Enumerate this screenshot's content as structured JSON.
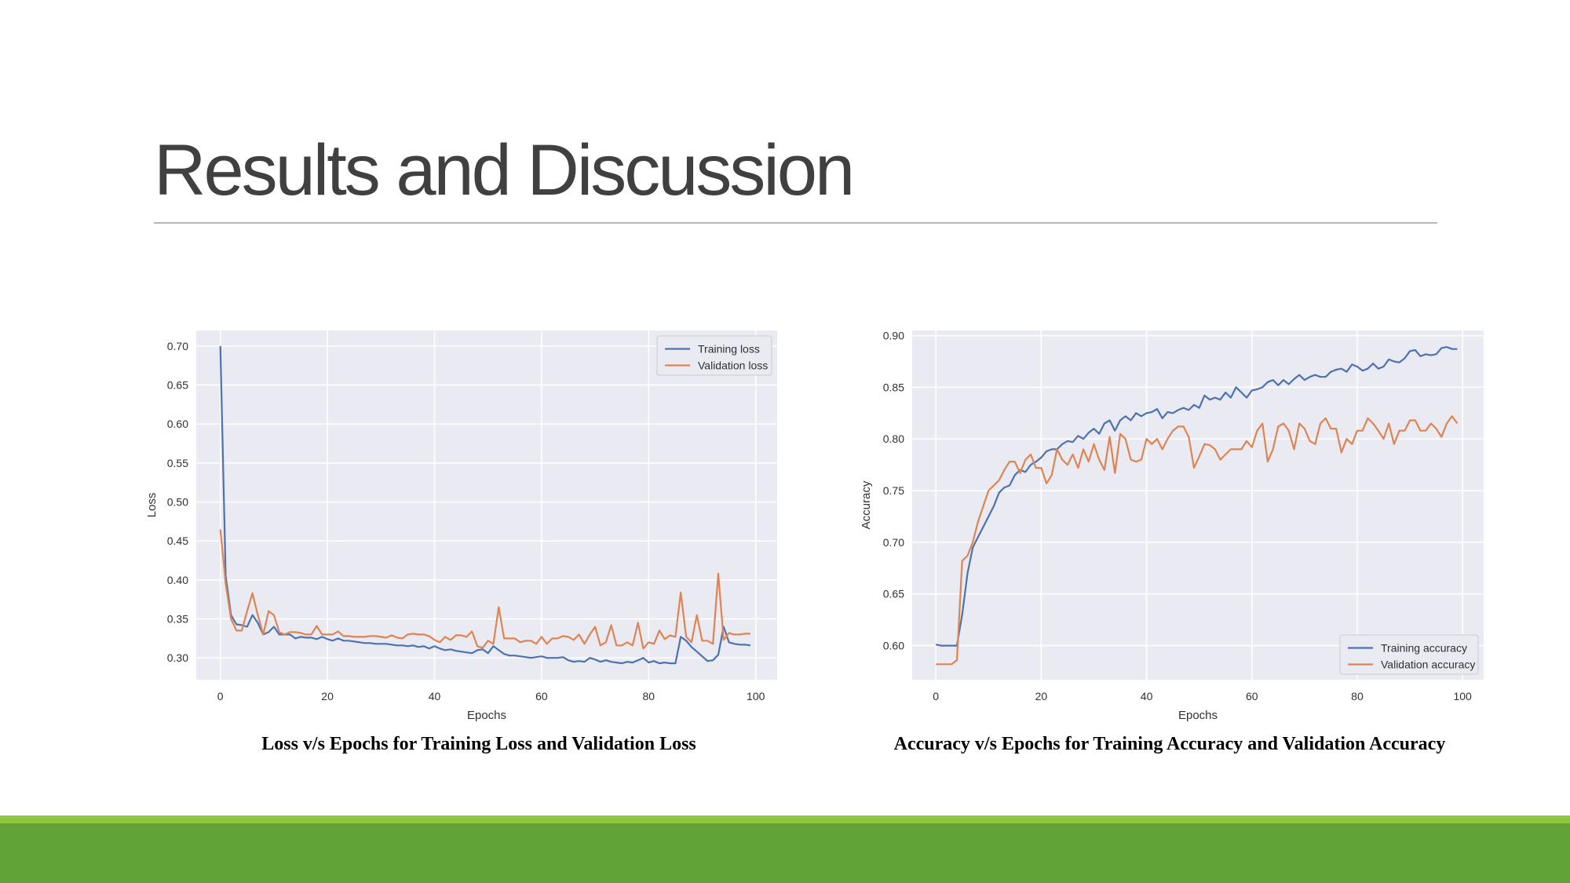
{
  "slide": {
    "title": "Results and Discussion",
    "accent_light": "#8dc63f",
    "accent_dark": "#62a337"
  },
  "charts": {
    "loss": {
      "caption": "Loss v/s Epochs for Training Loss and Validation Loss"
    },
    "accuracy": {
      "caption": "Accuracy v/s Epochs for Training Accuracy and Validation Accuracy"
    }
  },
  "chart_data": [
    {
      "type": "line",
      "xlabel": "Epochs",
      "ylabel": "Loss",
      "xlim": [
        -4.5,
        104
      ],
      "ylim": [
        0.272,
        0.72
      ],
      "xticks": [
        0,
        20,
        40,
        60,
        80,
        100
      ],
      "yticks": [
        0.3,
        0.35,
        0.4,
        0.45,
        0.5,
        0.55,
        0.6,
        0.65,
        0.7
      ],
      "grid": true,
      "legend": "top-right",
      "x": [
        0,
        1,
        2,
        3,
        4,
        5,
        6,
        7,
        8,
        9,
        10,
        11,
        12,
        13,
        14,
        15,
        16,
        17,
        18,
        19,
        20,
        21,
        22,
        23,
        24,
        25,
        26,
        27,
        28,
        29,
        30,
        31,
        32,
        33,
        34,
        35,
        36,
        37,
        38,
        39,
        40,
        41,
        42,
        43,
        44,
        45,
        46,
        47,
        48,
        49,
        50,
        51,
        52,
        53,
        54,
        55,
        56,
        57,
        58,
        59,
        60,
        61,
        62,
        63,
        64,
        65,
        66,
        67,
        68,
        69,
        70,
        71,
        72,
        73,
        74,
        75,
        76,
        77,
        78,
        79,
        80,
        81,
        82,
        83,
        84,
        85,
        86,
        87,
        88,
        89,
        90,
        91,
        92,
        93,
        94,
        95,
        96,
        97,
        98,
        99
      ],
      "series": [
        {
          "name": "Training loss",
          "color": "#4c72b0",
          "values": [
            0.7,
            0.405,
            0.355,
            0.343,
            0.342,
            0.34,
            0.355,
            0.345,
            0.33,
            0.333,
            0.34,
            0.33,
            0.33,
            0.33,
            0.325,
            0.327,
            0.326,
            0.326,
            0.324,
            0.327,
            0.324,
            0.322,
            0.325,
            0.322,
            0.322,
            0.321,
            0.32,
            0.319,
            0.319,
            0.318,
            0.318,
            0.318,
            0.317,
            0.316,
            0.316,
            0.315,
            0.316,
            0.314,
            0.315,
            0.312,
            0.315,
            0.312,
            0.31,
            0.311,
            0.309,
            0.308,
            0.307,
            0.306,
            0.31,
            0.311,
            0.306,
            0.315,
            0.31,
            0.305,
            0.303,
            0.303,
            0.302,
            0.301,
            0.3,
            0.301,
            0.302,
            0.3,
            0.3,
            0.3,
            0.301,
            0.297,
            0.295,
            0.296,
            0.295,
            0.3,
            0.298,
            0.295,
            0.297,
            0.295,
            0.294,
            0.293,
            0.295,
            0.294,
            0.297,
            0.3,
            0.294,
            0.296,
            0.293,
            0.294,
            0.293,
            0.293,
            0.327,
            0.322,
            0.314,
            0.308,
            0.302,
            0.296,
            0.297,
            0.304,
            0.34,
            0.32,
            0.318,
            0.317,
            0.317,
            0.316
          ]
        },
        {
          "name": "Validation loss",
          "color": "#dd8452",
          "values": [
            0.465,
            0.395,
            0.35,
            0.335,
            0.335,
            0.36,
            0.383,
            0.355,
            0.33,
            0.36,
            0.355,
            0.333,
            0.33,
            0.333,
            0.333,
            0.332,
            0.33,
            0.33,
            0.341,
            0.33,
            0.33,
            0.33,
            0.334,
            0.328,
            0.328,
            0.327,
            0.327,
            0.327,
            0.328,
            0.328,
            0.327,
            0.326,
            0.329,
            0.326,
            0.325,
            0.33,
            0.331,
            0.33,
            0.33,
            0.328,
            0.323,
            0.32,
            0.327,
            0.323,
            0.329,
            0.329,
            0.327,
            0.334,
            0.315,
            0.313,
            0.322,
            0.318,
            0.365,
            0.325,
            0.325,
            0.325,
            0.32,
            0.322,
            0.322,
            0.318,
            0.327,
            0.318,
            0.325,
            0.325,
            0.328,
            0.327,
            0.323,
            0.33,
            0.318,
            0.33,
            0.34,
            0.316,
            0.32,
            0.342,
            0.316,
            0.316,
            0.32,
            0.316,
            0.345,
            0.312,
            0.32,
            0.318,
            0.335,
            0.324,
            0.329,
            0.327,
            0.384,
            0.327,
            0.32,
            0.355,
            0.322,
            0.322,
            0.318,
            0.408,
            0.323,
            0.332,
            0.33,
            0.33,
            0.331,
            0.331
          ]
        }
      ]
    },
    {
      "type": "line",
      "xlabel": "Epochs",
      "ylabel": "Accuracy",
      "xlim": [
        -4.5,
        104
      ],
      "ylim": [
        0.567,
        0.905
      ],
      "xticks": [
        0,
        20,
        40,
        60,
        80,
        100
      ],
      "yticks": [
        0.6,
        0.65,
        0.7,
        0.75,
        0.8,
        0.85,
        0.9
      ],
      "grid": true,
      "legend": "bottom-right",
      "x": [
        0,
        1,
        2,
        3,
        4,
        5,
        6,
        7,
        8,
        9,
        10,
        11,
        12,
        13,
        14,
        15,
        16,
        17,
        18,
        19,
        20,
        21,
        22,
        23,
        24,
        25,
        26,
        27,
        28,
        29,
        30,
        31,
        32,
        33,
        34,
        35,
        36,
        37,
        38,
        39,
        40,
        41,
        42,
        43,
        44,
        45,
        46,
        47,
        48,
        49,
        50,
        51,
        52,
        53,
        54,
        55,
        56,
        57,
        58,
        59,
        60,
        61,
        62,
        63,
        64,
        65,
        66,
        67,
        68,
        69,
        70,
        71,
        72,
        73,
        74,
        75,
        76,
        77,
        78,
        79,
        80,
        81,
        82,
        83,
        84,
        85,
        86,
        87,
        88,
        89,
        90,
        91,
        92,
        93,
        94,
        95,
        96,
        97,
        98,
        99
      ],
      "series": [
        {
          "name": "Training accuracy",
          "color": "#4c72b0",
          "values": [
            0.601,
            0.6,
            0.6,
            0.6,
            0.6,
            0.63,
            0.67,
            0.695,
            0.705,
            0.715,
            0.725,
            0.735,
            0.748,
            0.753,
            0.755,
            0.765,
            0.77,
            0.768,
            0.775,
            0.778,
            0.782,
            0.788,
            0.79,
            0.79,
            0.795,
            0.798,
            0.797,
            0.803,
            0.8,
            0.806,
            0.81,
            0.805,
            0.815,
            0.818,
            0.808,
            0.818,
            0.822,
            0.818,
            0.825,
            0.822,
            0.825,
            0.826,
            0.829,
            0.82,
            0.826,
            0.825,
            0.828,
            0.83,
            0.828,
            0.833,
            0.83,
            0.842,
            0.838,
            0.84,
            0.838,
            0.845,
            0.84,
            0.85,
            0.845,
            0.84,
            0.847,
            0.848,
            0.85,
            0.855,
            0.857,
            0.852,
            0.857,
            0.853,
            0.858,
            0.862,
            0.857,
            0.86,
            0.862,
            0.86,
            0.86,
            0.865,
            0.867,
            0.868,
            0.865,
            0.872,
            0.87,
            0.866,
            0.868,
            0.873,
            0.868,
            0.87,
            0.877,
            0.875,
            0.874,
            0.878,
            0.885,
            0.886,
            0.88,
            0.882,
            0.881,
            0.882,
            0.888,
            0.889,
            0.887,
            0.887
          ]
        },
        {
          "name": "Validation accuracy",
          "color": "#dd8452",
          "values": [
            0.582,
            0.582,
            0.582,
            0.582,
            0.586,
            0.682,
            0.687,
            0.7,
            0.72,
            0.735,
            0.75,
            0.755,
            0.76,
            0.77,
            0.778,
            0.778,
            0.767,
            0.78,
            0.785,
            0.772,
            0.772,
            0.757,
            0.765,
            0.79,
            0.78,
            0.775,
            0.785,
            0.772,
            0.79,
            0.778,
            0.795,
            0.78,
            0.77,
            0.802,
            0.767,
            0.805,
            0.8,
            0.78,
            0.778,
            0.78,
            0.8,
            0.795,
            0.8,
            0.79,
            0.8,
            0.808,
            0.812,
            0.812,
            0.802,
            0.772,
            0.783,
            0.795,
            0.794,
            0.79,
            0.78,
            0.785,
            0.79,
            0.79,
            0.79,
            0.798,
            0.792,
            0.808,
            0.815,
            0.778,
            0.79,
            0.812,
            0.815,
            0.808,
            0.79,
            0.815,
            0.81,
            0.798,
            0.795,
            0.815,
            0.82,
            0.81,
            0.81,
            0.787,
            0.8,
            0.795,
            0.808,
            0.808,
            0.82,
            0.815,
            0.808,
            0.8,
            0.815,
            0.795,
            0.808,
            0.808,
            0.818,
            0.818,
            0.808,
            0.808,
            0.815,
            0.81,
            0.802,
            0.815,
            0.822,
            0.815
          ]
        }
      ]
    }
  ]
}
